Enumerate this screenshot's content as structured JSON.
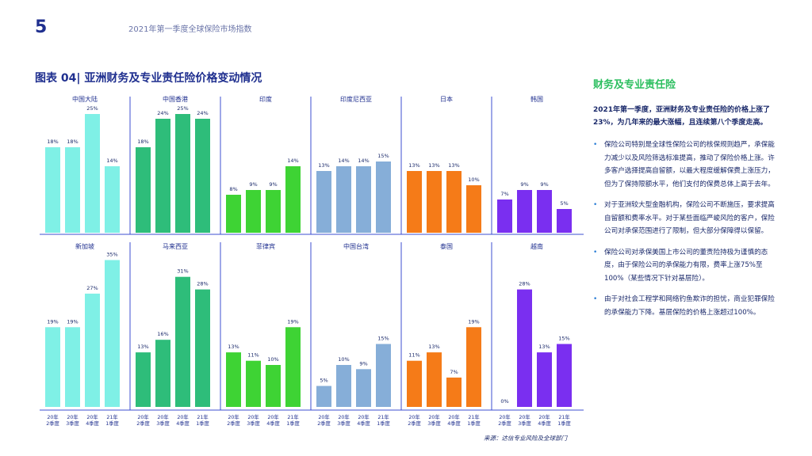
{
  "header": {
    "page_number": "5",
    "report_title": "2021年第一季度全球保险市场指数"
  },
  "figure_title": "图表 04| 亚洲财务及专业责任险价格变动情况",
  "sidebar": {
    "heading": "财务及专业责任险",
    "lead": "2021年第一季度，亚洲财务及专业责任险的价格上涨了23%，为几年来的最大涨幅，且连续第八个季度走高。",
    "bullets": [
      "保险公司特别是全球性保险公司的核保规则趋严，承保能力减少以及风险筛选标准提高，推动了保险价格上涨。许多客户选择提高自留额，以最大程度缓解保费上涨压力，但为了保持限额水平，他们支付的保费总体上高于去年。",
      "对于亚洲较大型金融机构，保险公司不断施压，要求提高自留额和费率水平。对于某些面临严峻风险的客户，保险公司对承保范围进行了限制，但大部分保障得以保留。",
      "保险公司对承保美国上市公司的董责险持极为谨慎的态度，由于保险公司的承保能力有限，费率上涨75%至100%（某些情况下针对基层险）。",
      "由于对社会工程学和网络钓鱼欺诈的担忧，商业犯罪保险的承保能力下降。基层保险的价格上涨超过100%。"
    ]
  },
  "source": "来源：达信专业风险及全球部门",
  "chart_data": {
    "type": "bar",
    "categories": [
      "20年\n2季度",
      "20年\n3季度",
      "20年\n4季度",
      "21年\n1季度"
    ],
    "unit": "%",
    "panels": [
      {
        "name": "中国大陆",
        "values": [
          18,
          18,
          25,
          14
        ],
        "color": "#7ff0e6"
      },
      {
        "name": "中国香港",
        "values": [
          18,
          24,
          25,
          24
        ],
        "color": "#2ebd7a"
      },
      {
        "name": "印度",
        "values": [
          8,
          9,
          9,
          14
        ],
        "color": "#3ed334"
      },
      {
        "name": "印度尼西亚",
        "values": [
          13,
          14,
          14,
          15
        ],
        "color": "#86aed8"
      },
      {
        "name": "日本",
        "values": [
          13,
          13,
          13,
          10
        ],
        "color": "#f57b18"
      },
      {
        "name": "韩国",
        "values": [
          7,
          9,
          9,
          5
        ],
        "color": "#7a2ff0"
      },
      {
        "name": "新加坡",
        "values": [
          19,
          19,
          27,
          35
        ],
        "color": "#7ff0e6"
      },
      {
        "name": "马来西亚",
        "values": [
          13,
          16,
          31,
          28
        ],
        "color": "#2ebd7a"
      },
      {
        "name": "菲律宾",
        "values": [
          13,
          11,
          10,
          19
        ],
        "color": "#3ed334"
      },
      {
        "name": "中国台湾",
        "values": [
          5,
          10,
          9,
          15
        ],
        "color": "#86aed8"
      },
      {
        "name": "泰国",
        "values": [
          11,
          13,
          7,
          19
        ],
        "color": "#f57b18"
      },
      {
        "name": "越南",
        "values": [
          0,
          28,
          13,
          15
        ],
        "color": "#7a2ff0"
      }
    ]
  }
}
